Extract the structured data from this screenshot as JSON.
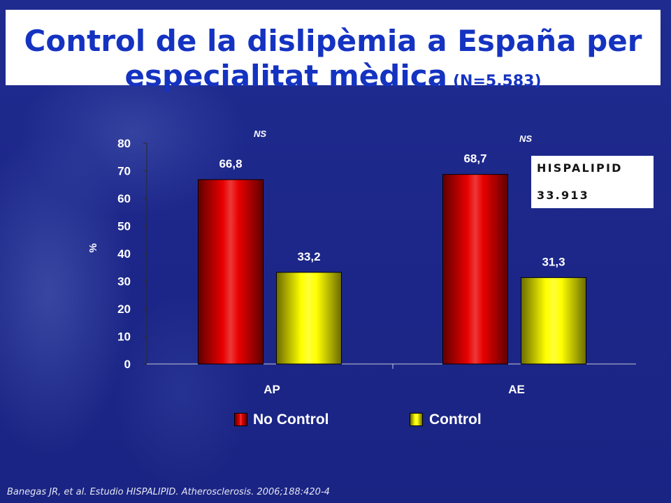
{
  "slide": {
    "title_line1": "Control de la dislipèmia a España per",
    "title_line2": "especialitat mèdica",
    "title_n": "(N=5.583)",
    "citation": "Banegas JR, et al. Estudio HISPALIPID. Atherosclerosis. 2006;188:420-4"
  },
  "info_box": {
    "line1": "HISPALIPID",
    "line2": "33.913"
  },
  "colors": {
    "background": "#1c2688",
    "title": "#1533c1",
    "text": "#ffffff"
  },
  "chart_data": {
    "type": "bar",
    "categories": [
      "AP",
      "AE"
    ],
    "series": [
      {
        "name": "No Control",
        "color": "#e80000",
        "values": [
          66.8,
          68.7
        ],
        "data_labels": [
          "66,8",
          "68,7"
        ]
      },
      {
        "name": "Control",
        "color": "#ffff00",
        "values": [
          33.2,
          31.3
        ],
        "data_labels": [
          "33,2",
          "31,3"
        ]
      }
    ],
    "ylabel": "%",
    "ylim": [
      0,
      80
    ],
    "yticks": [
      0,
      10,
      20,
      30,
      40,
      50,
      60,
      70,
      80
    ],
    "annotations": [
      {
        "category": "AP",
        "text": "NS"
      },
      {
        "category": "AE",
        "text": "NS"
      }
    ],
    "legend": "bottom",
    "grid": false
  }
}
